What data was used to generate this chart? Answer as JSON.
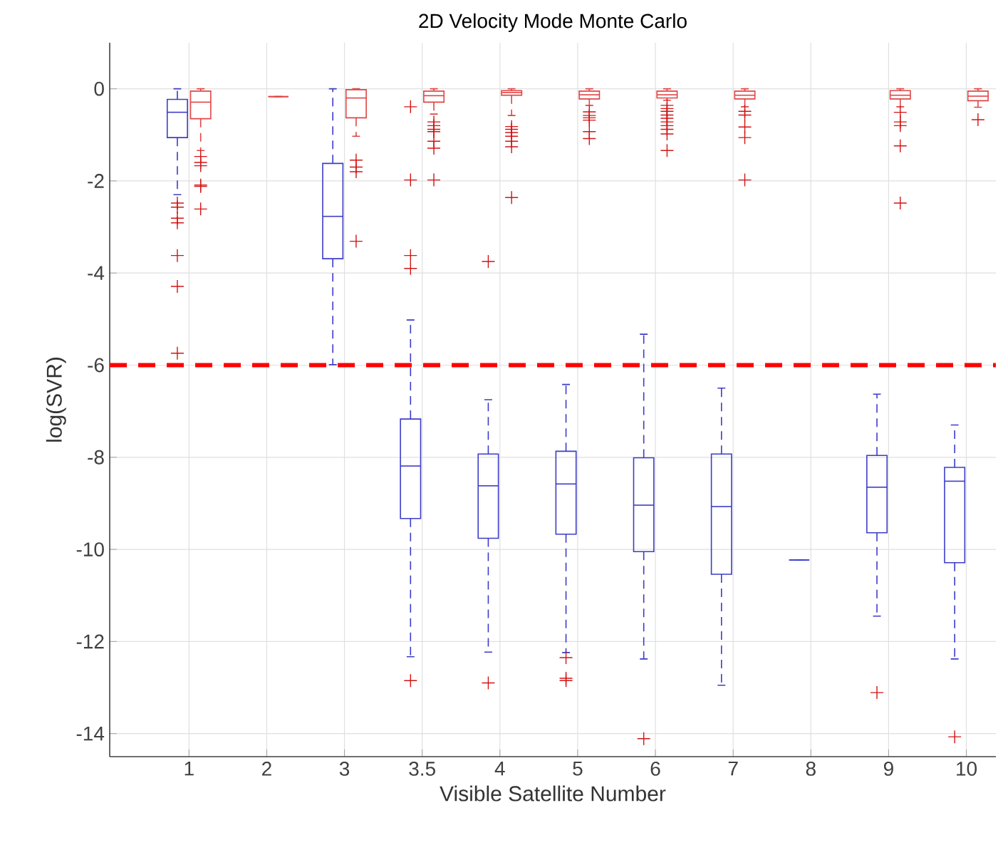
{
  "chart_data": {
    "type": "box",
    "title": "2D Velocity Mode Monte Carlo",
    "xlabel": "Visible Satellite Number",
    "ylabel": "log(SVR)",
    "categories": [
      "1",
      "2",
      "3",
      "3.5",
      "4",
      "5",
      "6",
      "7",
      "8",
      "9",
      "10"
    ],
    "ylim": [
      -14.5,
      1
    ],
    "yticks": [
      -14,
      -12,
      -10,
      -8,
      -6,
      -4,
      -2,
      0
    ],
    "grid": true,
    "ref_lines": [
      {
        "axis": "y",
        "value": -6,
        "color": "#ff0000",
        "line_style": "dashed"
      }
    ],
    "series": [
      {
        "color": "#3c3cc8",
        "boxes": [
          {
            "low": -2.3,
            "q1": -1.06,
            "median": -0.51,
            "q3": -0.23,
            "high": 0,
            "outliers": [
              -2.48,
              -2.57,
              -2.81,
              -2.91,
              -3.62,
              -4.29,
              -5.74
            ]
          },
          null,
          {
            "low": -5.99,
            "q1": -3.69,
            "median": -2.77,
            "q3": -1.62,
            "high": 0
          },
          {
            "low": -12.33,
            "q1": -9.33,
            "median": -8.19,
            "q3": -7.17,
            "high": -5.02,
            "outliers": [
              -0.39,
              -1.98,
              -3.62,
              -3.9,
              -12.85
            ]
          },
          {
            "low": -12.23,
            "q1": -9.76,
            "median": -8.62,
            "q3": -7.93,
            "high": -6.75,
            "outliers": [
              -3.75,
              -12.9
            ]
          },
          {
            "low": -12.24,
            "q1": -9.67,
            "median": -8.58,
            "q3": -7.87,
            "high": -6.42,
            "outliers": [
              -12.35,
              -12.8,
              -12.85
            ]
          },
          {
            "low": -12.38,
            "q1": -10.05,
            "median": -9.04,
            "q3": -8.01,
            "high": -5.33,
            "outliers": [
              -14.11
            ]
          },
          {
            "low": -12.95,
            "q1": -10.54,
            "median": -9.07,
            "q3": -7.93,
            "high": -6.5
          },
          {
            "low": -10.23,
            "q1": -10.23,
            "median": -10.23,
            "q3": -10.23,
            "high": -10.23
          },
          {
            "low": -11.45,
            "q1": -9.64,
            "median": -8.65,
            "q3": -7.96,
            "high": -6.63,
            "outliers": [
              -13.11
            ]
          },
          {
            "low": -12.38,
            "q1": -10.29,
            "median": -8.52,
            "q3": -8.22,
            "high": -7.3,
            "outliers": [
              -14.07
            ]
          }
        ]
      },
      {
        "color": "#e04545",
        "boxes": [
          {
            "low": -1.34,
            "q1": -0.65,
            "median": -0.29,
            "q3": -0.05,
            "high": 0,
            "outliers": [
              -1.47,
              -1.6,
              -1.67,
              -2.09,
              -2.12,
              -2.61
            ]
          },
          {
            "low": -0.17,
            "q1": -0.17,
            "median": -0.17,
            "q3": -0.17,
            "high": -0.17
          },
          {
            "low": -1.03,
            "q1": -0.63,
            "median": -0.2,
            "q3": -0.02,
            "high": 0,
            "outliers": [
              -1.55,
              -1.7,
              -1.8,
              -3.31
            ]
          },
          {
            "low": -0.55,
            "q1": -0.29,
            "median": -0.15,
            "q3": -0.05,
            "high": 0,
            "outliers": [
              -0.72,
              -0.8,
              -0.88,
              -0.93,
              -1.14,
              -1.29,
              -1.98
            ]
          },
          {
            "low": -0.58,
            "q1": -0.14,
            "median": -0.08,
            "q3": -0.04,
            "high": 0,
            "outliers": [
              -0.82,
              -0.88,
              -0.95,
              -1.03,
              -1.14,
              -1.26,
              -2.36
            ]
          },
          {
            "low": -0.36,
            "q1": -0.22,
            "median": -0.13,
            "q3": -0.05,
            "high": 0,
            "outliers": [
              -0.5,
              -0.58,
              -0.63,
              -0.68,
              -0.93,
              -1.08
            ]
          },
          {
            "low": -0.25,
            "q1": -0.2,
            "median": -0.13,
            "q3": -0.05,
            "high": 0,
            "outliers": [
              -0.36,
              -0.43,
              -0.49,
              -0.57,
              -0.64,
              -0.72,
              -0.8,
              -0.88,
              -0.98,
              -1.34
            ]
          },
          {
            "low": -0.39,
            "q1": -0.22,
            "median": -0.14,
            "q3": -0.05,
            "high": 0,
            "outliers": [
              -0.49,
              -0.57,
              -0.83,
              -1.06,
              -1.98
            ]
          },
          null,
          {
            "low": -0.39,
            "q1": -0.22,
            "median": -0.14,
            "q3": -0.04,
            "high": 0,
            "outliers": [
              -0.51,
              -0.72,
              -0.8,
              -1.24,
              -2.48
            ]
          },
          {
            "low": -0.4,
            "q1": -0.26,
            "median": -0.16,
            "q3": -0.05,
            "high": 0,
            "outliers": [
              -0.67
            ]
          }
        ]
      }
    ]
  }
}
